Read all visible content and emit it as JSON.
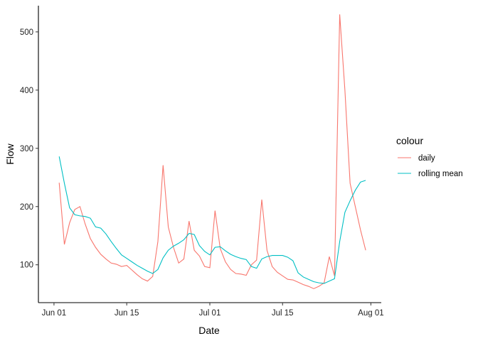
{
  "chart_data": {
    "type": "line",
    "xlabel": "Date",
    "ylabel": "Flow",
    "x_ticks": [
      {
        "date": "2023-06-01",
        "label": "Jun 01"
      },
      {
        "date": "2023-06-15",
        "label": "Jun 15"
      },
      {
        "date": "2023-07-01",
        "label": "Jul 01"
      },
      {
        "date": "2023-07-15",
        "label": "Jul 15"
      },
      {
        "date": "2023-08-01",
        "label": "Aug 01"
      }
    ],
    "y_ticks": [
      100,
      200,
      300,
      400,
      500
    ],
    "xlim": [
      "2023-05-29",
      "2023-08-03"
    ],
    "ylim": [
      35,
      545
    ],
    "grid": false,
    "legend": {
      "title": "colour",
      "position": "right",
      "entries": [
        "daily",
        "rolling mean"
      ]
    },
    "colors": {
      "daily": "#F8766D",
      "rolling mean": "#00BFC4"
    },
    "series": [
      {
        "name": "daily",
        "points": [
          [
            "2023-06-02",
            241
          ],
          [
            "2023-06-03",
            135
          ],
          [
            "2023-06-04",
            172
          ],
          [
            "2023-06-05",
            195
          ],
          [
            "2023-06-06",
            200
          ],
          [
            "2023-06-07",
            170
          ],
          [
            "2023-06-08",
            145
          ],
          [
            "2023-06-09",
            130
          ],
          [
            "2023-06-10",
            118
          ],
          [
            "2023-06-11",
            110
          ],
          [
            "2023-06-12",
            103
          ],
          [
            "2023-06-13",
            101
          ],
          [
            "2023-06-14",
            97
          ],
          [
            "2023-06-15",
            99
          ],
          [
            "2023-06-16",
            91
          ],
          [
            "2023-06-17",
            83
          ],
          [
            "2023-06-18",
            76
          ],
          [
            "2023-06-19",
            72
          ],
          [
            "2023-06-20",
            80
          ],
          [
            "2023-06-21",
            140
          ],
          [
            "2023-06-22",
            271
          ],
          [
            "2023-06-23",
            165
          ],
          [
            "2023-06-24",
            130
          ],
          [
            "2023-06-25",
            103
          ],
          [
            "2023-06-26",
            110
          ],
          [
            "2023-06-27",
            175
          ],
          [
            "2023-06-28",
            125
          ],
          [
            "2023-06-29",
            115
          ],
          [
            "2023-06-30",
            97
          ],
          [
            "2023-07-01",
            95
          ],
          [
            "2023-07-02",
            193
          ],
          [
            "2023-07-03",
            128
          ],
          [
            "2023-07-04",
            105
          ],
          [
            "2023-07-05",
            92
          ],
          [
            "2023-07-06",
            85
          ],
          [
            "2023-07-07",
            84
          ],
          [
            "2023-07-08",
            82
          ],
          [
            "2023-07-09",
            100
          ],
          [
            "2023-07-10",
            108
          ],
          [
            "2023-07-11",
            212
          ],
          [
            "2023-07-12",
            125
          ],
          [
            "2023-07-13",
            97
          ],
          [
            "2023-07-14",
            87
          ],
          [
            "2023-07-15",
            81
          ],
          [
            "2023-07-16",
            75
          ],
          [
            "2023-07-17",
            74
          ],
          [
            "2023-07-18",
            70
          ],
          [
            "2023-07-19",
            66
          ],
          [
            "2023-07-20",
            63
          ],
          [
            "2023-07-21",
            59
          ],
          [
            "2023-07-22",
            63
          ],
          [
            "2023-07-23",
            69
          ],
          [
            "2023-07-24",
            114
          ],
          [
            "2023-07-25",
            81
          ],
          [
            "2023-07-26",
            530
          ],
          [
            "2023-07-27",
            400
          ],
          [
            "2023-07-28",
            240
          ],
          [
            "2023-07-29",
            200
          ],
          [
            "2023-07-30",
            160
          ],
          [
            "2023-07-31",
            125
          ]
        ]
      },
      {
        "name": "rolling mean",
        "points": [
          [
            "2023-06-02",
            286
          ],
          [
            "2023-06-03",
            240
          ],
          [
            "2023-06-04",
            198
          ],
          [
            "2023-06-05",
            186
          ],
          [
            "2023-06-06",
            184
          ],
          [
            "2023-06-07",
            183
          ],
          [
            "2023-06-08",
            180
          ],
          [
            "2023-06-09",
            165
          ],
          [
            "2023-06-10",
            163
          ],
          [
            "2023-06-11",
            153
          ],
          [
            "2023-06-12",
            140
          ],
          [
            "2023-06-13",
            128
          ],
          [
            "2023-06-14",
            117
          ],
          [
            "2023-06-15",
            111
          ],
          [
            "2023-06-16",
            105
          ],
          [
            "2023-06-17",
            99
          ],
          [
            "2023-06-18",
            94
          ],
          [
            "2023-06-19",
            89
          ],
          [
            "2023-06-20",
            85
          ],
          [
            "2023-06-21",
            92
          ],
          [
            "2023-06-22",
            112
          ],
          [
            "2023-06-23",
            125
          ],
          [
            "2023-06-24",
            132
          ],
          [
            "2023-06-25",
            137
          ],
          [
            "2023-06-26",
            143
          ],
          [
            "2023-06-27",
            154
          ],
          [
            "2023-06-28",
            152
          ],
          [
            "2023-06-29",
            133
          ],
          [
            "2023-06-30",
            123
          ],
          [
            "2023-07-01",
            117
          ],
          [
            "2023-07-02",
            130
          ],
          [
            "2023-07-03",
            131
          ],
          [
            "2023-07-04",
            124
          ],
          [
            "2023-07-05",
            118
          ],
          [
            "2023-07-06",
            114
          ],
          [
            "2023-07-07",
            111
          ],
          [
            "2023-07-08",
            109
          ],
          [
            "2023-07-09",
            97
          ],
          [
            "2023-07-10",
            94
          ],
          [
            "2023-07-11",
            110
          ],
          [
            "2023-07-12",
            114
          ],
          [
            "2023-07-13",
            116
          ],
          [
            "2023-07-14",
            116
          ],
          [
            "2023-07-15",
            116
          ],
          [
            "2023-07-16",
            113
          ],
          [
            "2023-07-17",
            107
          ],
          [
            "2023-07-18",
            86
          ],
          [
            "2023-07-19",
            79
          ],
          [
            "2023-07-20",
            75
          ],
          [
            "2023-07-21",
            71
          ],
          [
            "2023-07-22",
            69
          ],
          [
            "2023-07-23",
            68
          ],
          [
            "2023-07-24",
            72
          ],
          [
            "2023-07-25",
            76
          ],
          [
            "2023-07-26",
            140
          ],
          [
            "2023-07-27",
            190
          ],
          [
            "2023-07-28",
            210
          ],
          [
            "2023-07-29",
            228
          ],
          [
            "2023-07-30",
            242
          ],
          [
            "2023-07-31",
            245
          ]
        ]
      }
    ]
  }
}
